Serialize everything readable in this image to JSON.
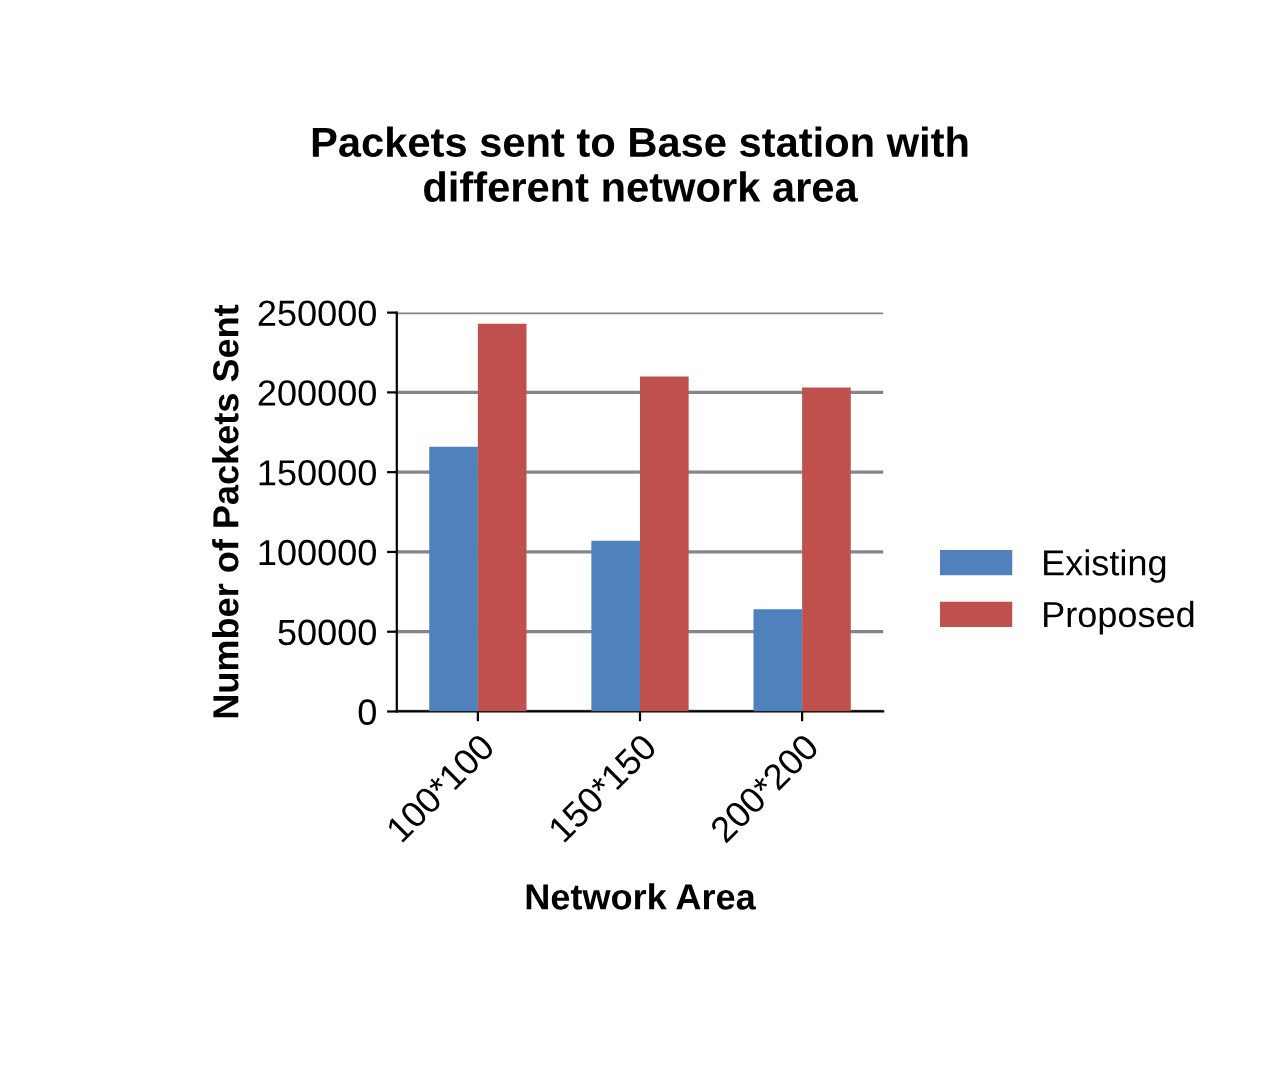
{
  "chart_data": {
    "type": "bar",
    "title": "Packets sent to Base station with\ndifferent network area",
    "xlabel": "Network Area",
    "ylabel": "Number of Packets Sent",
    "categories": [
      "100*100",
      "150*150",
      "200*200"
    ],
    "series": [
      {
        "name": "Existing",
        "color": "#4f81bd",
        "values": [
          166000,
          107000,
          64000
        ]
      },
      {
        "name": "Proposed",
        "color": "#c0504d",
        "values": [
          243000,
          210000,
          203000
        ]
      }
    ],
    "ylim": [
      0,
      250000
    ],
    "yticks": [
      0,
      50000,
      100000,
      150000,
      200000,
      250000
    ],
    "grid": "y",
    "legend": "right"
  }
}
